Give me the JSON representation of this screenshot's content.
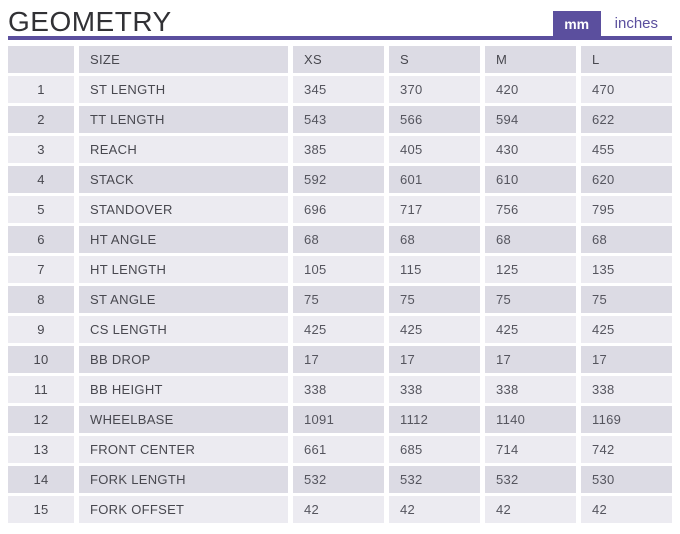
{
  "header": {
    "title": "GEOMETRY",
    "unit_toggle": {
      "mm_label": "mm",
      "inches_label": "inches",
      "active_unit": "mm"
    }
  },
  "colors": {
    "accent": "#5b4f9e",
    "row_light": "#ecebf1",
    "row_dark": "#dcdbe4",
    "title_text": "#313135",
    "cell_text": "#55555e"
  },
  "table": {
    "columns": [
      "",
      "SIZE",
      "XS",
      "S",
      "M",
      "L"
    ],
    "rows": [
      {
        "num": "1",
        "label": "ST LENGTH",
        "values": [
          "345",
          "370",
          "420",
          "470"
        ]
      },
      {
        "num": "2",
        "label": "TT LENGTH",
        "values": [
          "543",
          "566",
          "594",
          "622"
        ]
      },
      {
        "num": "3",
        "label": "REACH",
        "values": [
          "385",
          "405",
          "430",
          "455"
        ]
      },
      {
        "num": "4",
        "label": "STACK",
        "values": [
          "592",
          "601",
          "610",
          "620"
        ]
      },
      {
        "num": "5",
        "label": "STANDOVER",
        "values": [
          "696",
          "717",
          "756",
          "795"
        ]
      },
      {
        "num": "6",
        "label": "HT ANGLE",
        "values": [
          "68",
          "68",
          "68",
          "68"
        ]
      },
      {
        "num": "7",
        "label": "HT LENGTH",
        "values": [
          "105",
          "115",
          "125",
          "135"
        ]
      },
      {
        "num": "8",
        "label": "ST ANGLE",
        "values": [
          "75",
          "75",
          "75",
          "75"
        ]
      },
      {
        "num": "9",
        "label": "CS LENGTH",
        "values": [
          "425",
          "425",
          "425",
          "425"
        ]
      },
      {
        "num": "10",
        "label": "BB DROP",
        "values": [
          "17",
          "17",
          "17",
          "17"
        ]
      },
      {
        "num": "11",
        "label": "BB HEIGHT",
        "values": [
          "338",
          "338",
          "338",
          "338"
        ]
      },
      {
        "num": "12",
        "label": "WHEELBASE",
        "values": [
          "1091",
          "1112",
          "1140",
          "1169"
        ]
      },
      {
        "num": "13",
        "label": "FRONT CENTER",
        "values": [
          "661",
          "685",
          "714",
          "742"
        ]
      },
      {
        "num": "14",
        "label": "FORK LENGTH",
        "values": [
          "532",
          "532",
          "532",
          "530"
        ]
      },
      {
        "num": "15",
        "label": "FORK OFFSET",
        "values": [
          "42",
          "42",
          "42",
          "42"
        ]
      }
    ]
  }
}
